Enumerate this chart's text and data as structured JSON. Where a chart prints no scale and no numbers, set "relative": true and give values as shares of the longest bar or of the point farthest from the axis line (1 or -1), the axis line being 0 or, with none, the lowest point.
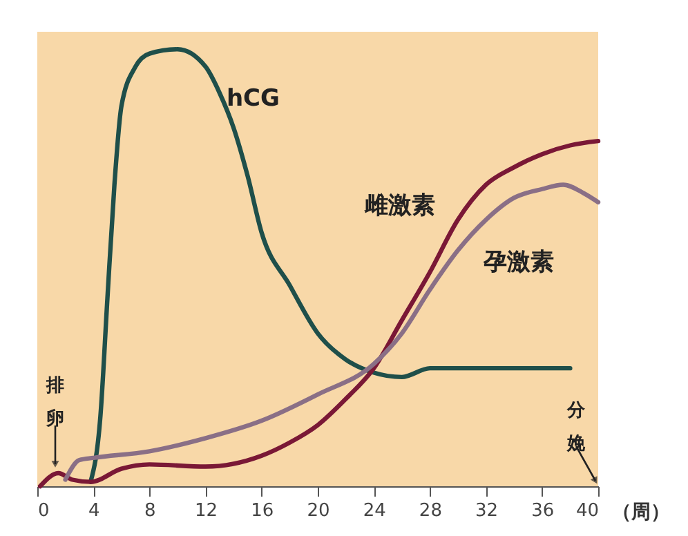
{
  "chart_data": {
    "type": "line",
    "relative": true,
    "xlabel": "（周）",
    "xlim": [
      0,
      40
    ],
    "xticks": [
      0,
      4,
      8,
      12,
      16,
      20,
      24,
      28,
      32,
      36,
      40
    ],
    "grid": false,
    "marker": "none",
    "line_style": "solid",
    "series": [
      {
        "name": "hCG",
        "color": "#1f4f4a",
        "x": [
          3.8,
          4.5,
          5,
          5.5,
          6,
          7,
          8,
          10,
          12,
          13,
          14,
          15,
          16,
          18,
          20,
          22,
          24,
          26,
          28,
          32,
          38
        ],
        "values": [
          0.01,
          0.16,
          0.43,
          0.69,
          0.87,
          0.96,
          0.99,
          1.0,
          0.96,
          0.9,
          0.82,
          0.71,
          0.58,
          0.46,
          0.35,
          0.29,
          0.26,
          0.25,
          0.27,
          0.27,
          0.27
        ]
      },
      {
        "name": "雌激素",
        "color": "#7a1836",
        "x": [
          0.2,
          1.5,
          2.5,
          3.8,
          6,
          8,
          12,
          16,
          18,
          20,
          22,
          24,
          26,
          28,
          30,
          32,
          34,
          36,
          38,
          40
        ],
        "values": [
          0,
          0.03,
          0.015,
          0.01,
          0.04,
          0.05,
          0.045,
          0.07,
          0.1,
          0.14,
          0.2,
          0.27,
          0.38,
          0.49,
          0.61,
          0.69,
          0.73,
          0.76,
          0.78,
          0.79
        ]
      },
      {
        "name": "孕激素",
        "color": "#8a6f86",
        "x": [
          2,
          3,
          4,
          8,
          12,
          16,
          20,
          24,
          26,
          28,
          30,
          32,
          34,
          36,
          37.5,
          39,
          40
        ],
        "values": [
          0.015,
          0.06,
          0.065,
          0.08,
          0.11,
          0.15,
          0.21,
          0.28,
          0.35,
          0.45,
          0.54,
          0.61,
          0.66,
          0.68,
          0.69,
          0.67,
          0.65
        ]
      }
    ],
    "annotations": [
      "排卵",
      "分娩"
    ]
  }
}
